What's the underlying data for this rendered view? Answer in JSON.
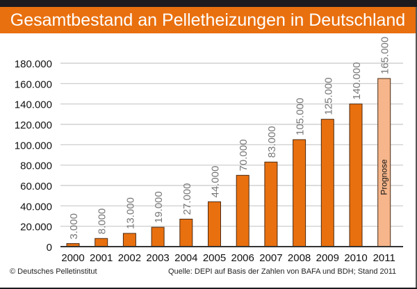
{
  "chart_data": {
    "type": "bar",
    "title": "Gesamtbestand an Pelletheizungen in Deutschland",
    "xlabel": "",
    "ylabel": "",
    "categories": [
      "2000",
      "2001",
      "2002",
      "2003",
      "2004",
      "2005",
      "2006",
      "2007",
      "2008",
      "2009",
      "2010",
      "2011"
    ],
    "values": [
      3000,
      8000,
      13000,
      19000,
      27000,
      44000,
      70000,
      83000,
      105000,
      125000,
      140000,
      165000
    ],
    "data_labels": [
      "3.000",
      "8.000",
      "13.000",
      "19.000",
      "27.000",
      "44.000",
      "70.000",
      "83.000",
      "105.000",
      "125.000",
      "140.000",
      "165.000"
    ],
    "ylim": [
      0,
      180000
    ],
    "yticks": [
      0,
      20000,
      40000,
      60000,
      80000,
      100000,
      120000,
      140000,
      160000,
      180000
    ],
    "ytick_labels": [
      "0",
      "20.000",
      "40.000",
      "60.000",
      "80.000",
      "100.000",
      "120.000",
      "140.000",
      "160.000",
      "180.000"
    ],
    "grid": true,
    "annotations": [
      {
        "category": "2011",
        "text": "Prognose"
      }
    ],
    "colors": {
      "bar": "#e9700f",
      "forecast_bar": "#f6b58a",
      "bar_outline": "#4a2a12",
      "header": "#e9700f",
      "grid": "#c8c8c8",
      "label": "#777777"
    }
  },
  "footer": {
    "copyright": "© Deutsches Pelletinstitut",
    "source": "Quelle: DEPI auf Basis der Zahlen von BAFA und BDH; Stand 2011"
  }
}
